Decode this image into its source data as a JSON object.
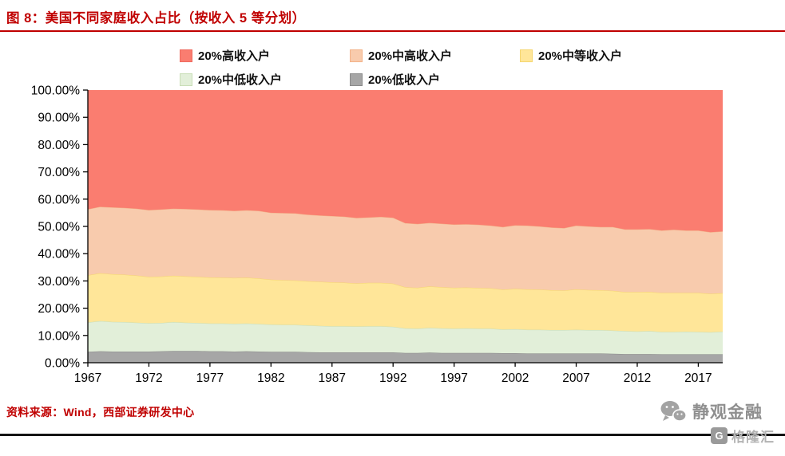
{
  "title": "图 8：美国不同家庭收入占比（按收入 5 等分划）",
  "source_note": "资料来源：Wind，西部证券研发中心",
  "branding": {
    "account_name": "静观金融",
    "watermark_text": "格隆汇",
    "watermark_badge": "G"
  },
  "colors": {
    "accent_red": "#c00000",
    "bottom_rule": "#141414",
    "axis": "#000000"
  },
  "chart_data": {
    "type": "area",
    "stacked": true,
    "title": "美国不同家庭收入占比（按收入5等分划）",
    "xlabel": "",
    "ylabel": "",
    "ylim": [
      0,
      100
    ],
    "grid": false,
    "legend_position": "top",
    "y_ticks": [
      "100.00%",
      "90.00%",
      "80.00%",
      "70.00%",
      "60.00%",
      "50.00%",
      "40.00%",
      "30.00%",
      "20.00%",
      "10.00%",
      "0.00%"
    ],
    "x_ticks": [
      1967,
      1972,
      1977,
      1982,
      1987,
      1992,
      1997,
      2002,
      2007,
      2012,
      2017
    ],
    "x": [
      1967,
      1968,
      1969,
      1970,
      1971,
      1972,
      1973,
      1974,
      1975,
      1976,
      1977,
      1978,
      1979,
      1980,
      1981,
      1982,
      1983,
      1984,
      1985,
      1986,
      1987,
      1988,
      1989,
      1990,
      1991,
      1992,
      1993,
      1994,
      1995,
      1996,
      1997,
      1998,
      1999,
      2000,
      2001,
      2002,
      2003,
      2004,
      2005,
      2006,
      2007,
      2008,
      2009,
      2010,
      2011,
      2012,
      2013,
      2014,
      2015,
      2016,
      2017,
      2018,
      2019
    ],
    "series": [
      {
        "name": "20%低收入户",
        "color": "#a6a6a6",
        "edge": "#8a8a8a",
        "values": [
          4.0,
          4.2,
          4.1,
          4.1,
          4.1,
          4.1,
          4.2,
          4.3,
          4.3,
          4.3,
          4.2,
          4.2,
          4.1,
          4.2,
          4.1,
          4.0,
          4.0,
          4.0,
          3.9,
          3.8,
          3.8,
          3.8,
          3.8,
          3.8,
          3.8,
          3.8,
          3.6,
          3.6,
          3.7,
          3.6,
          3.6,
          3.6,
          3.6,
          3.6,
          3.5,
          3.5,
          3.4,
          3.4,
          3.4,
          3.4,
          3.4,
          3.4,
          3.4,
          3.3,
          3.2,
          3.2,
          3.2,
          3.1,
          3.1,
          3.1,
          3.1,
          3.1,
          3.1
        ]
      },
      {
        "name": "20%中低收入户",
        "color": "#e2efd9",
        "edge": "#c8ddb6",
        "values": [
          10.8,
          11.1,
          10.9,
          10.8,
          10.6,
          10.4,
          10.4,
          10.6,
          10.4,
          10.3,
          10.2,
          10.2,
          10.2,
          10.2,
          10.1,
          10.0,
          9.9,
          9.9,
          9.8,
          9.7,
          9.6,
          9.6,
          9.5,
          9.6,
          9.6,
          9.4,
          9.0,
          8.9,
          9.1,
          9.0,
          8.9,
          9.0,
          8.9,
          8.9,
          8.7,
          8.8,
          8.7,
          8.7,
          8.6,
          8.6,
          8.7,
          8.6,
          8.6,
          8.5,
          8.4,
          8.3,
          8.4,
          8.2,
          8.2,
          8.3,
          8.2,
          8.1,
          8.3
        ]
      },
      {
        "name": "20%中等收入户",
        "color": "#ffe699",
        "edge": "#f5d66f",
        "values": [
          17.3,
          17.5,
          17.5,
          17.4,
          17.3,
          17.0,
          17.0,
          17.0,
          17.0,
          16.9,
          16.9,
          16.8,
          16.8,
          16.8,
          16.7,
          16.5,
          16.4,
          16.3,
          16.2,
          16.2,
          16.1,
          16.0,
          15.8,
          15.9,
          15.9,
          15.8,
          15.1,
          15.0,
          15.2,
          15.1,
          15.0,
          15.0,
          14.9,
          14.8,
          14.6,
          14.8,
          14.8,
          14.7,
          14.6,
          14.5,
          14.8,
          14.7,
          14.6,
          14.6,
          14.3,
          14.4,
          14.4,
          14.3,
          14.3,
          14.2,
          14.3,
          14.1,
          14.1
        ]
      },
      {
        "name": "20%中高收入户",
        "color": "#f8cbad",
        "edge": "#f3b288",
        "values": [
          24.2,
          24.4,
          24.5,
          24.5,
          24.5,
          24.5,
          24.6,
          24.6,
          24.7,
          24.7,
          24.7,
          24.7,
          24.6,
          24.7,
          24.8,
          24.5,
          24.6,
          24.6,
          24.4,
          24.3,
          24.3,
          24.2,
          24.0,
          24.0,
          24.2,
          24.2,
          23.5,
          23.4,
          23.3,
          23.3,
          23.2,
          23.2,
          23.2,
          23.0,
          23.0,
          23.3,
          23.4,
          23.2,
          23.0,
          22.9,
          23.4,
          23.3,
          23.2,
          23.4,
          23.0,
          23.0,
          23.0,
          22.9,
          23.2,
          22.9,
          22.9,
          22.6,
          22.7
        ]
      },
      {
        "name": "20%高收入户",
        "color": "#fa7d70",
        "edge": "#ef6a5e",
        "values": [
          43.7,
          42.8,
          43.0,
          43.2,
          43.5,
          44.0,
          43.8,
          43.5,
          43.6,
          43.8,
          44.0,
          44.1,
          44.3,
          44.1,
          44.3,
          45.0,
          45.1,
          45.2,
          45.7,
          46.0,
          46.2,
          46.4,
          46.9,
          46.7,
          46.5,
          46.8,
          48.8,
          49.1,
          48.7,
          49.0,
          49.3,
          49.2,
          49.4,
          49.7,
          50.2,
          49.6,
          49.7,
          50.0,
          50.4,
          50.6,
          49.7,
          50.0,
          50.2,
          50.2,
          51.1,
          51.1,
          51.0,
          51.5,
          51.2,
          51.5,
          51.5,
          52.1,
          51.8
        ]
      }
    ]
  }
}
